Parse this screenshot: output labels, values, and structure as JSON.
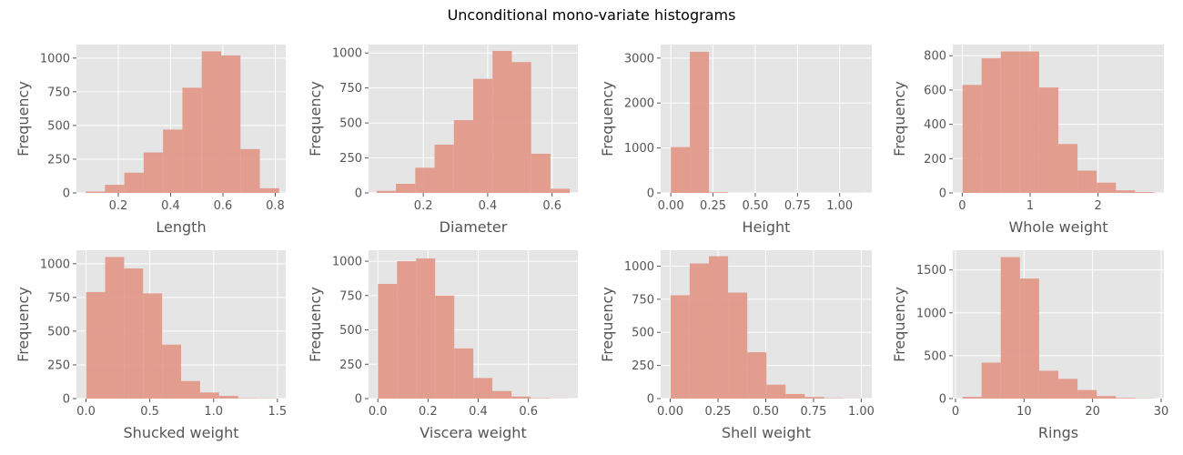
{
  "figure": {
    "suptitle": "Unconditional mono-variate histograms"
  },
  "colors": {
    "axes_bg": "#E5E5E5",
    "grid": "#FFFFFF",
    "bar": "#E2998A",
    "tick_text": "#555555",
    "figure_bg": "#FFFFFF"
  },
  "chart_data": [
    {
      "type": "bar",
      "xlabel": "Length",
      "ylabel": "Frequency",
      "grid": true,
      "xlim": [
        0.04,
        0.84
      ],
      "ylim": [
        0,
        1100
      ],
      "xticks": [
        0.2,
        0.4,
        0.6,
        0.8
      ],
      "xtick_labels": [
        "0.2",
        "0.4",
        "0.6",
        "0.8"
      ],
      "yticks": [
        0,
        250,
        500,
        750,
        1000
      ],
      "ytick_labels": [
        "0",
        "250",
        "500",
        "750",
        "1000"
      ],
      "bin_edges": [
        0.075,
        0.149,
        0.223,
        0.297,
        0.371,
        0.445,
        0.519,
        0.593,
        0.667,
        0.741,
        0.815
      ],
      "values": [
        10,
        60,
        150,
        300,
        470,
        780,
        1050,
        1020,
        325,
        35
      ]
    },
    {
      "type": "bar",
      "xlabel": "Diameter",
      "ylabel": "Frequency",
      "grid": true,
      "xlim": [
        0.03,
        0.68
      ],
      "ylim": [
        0,
        1060
      ],
      "xticks": [
        0.2,
        0.4,
        0.6
      ],
      "xtick_labels": [
        "0.2",
        "0.4",
        "0.6"
      ],
      "yticks": [
        0,
        250,
        500,
        750,
        1000
      ],
      "ytick_labels": [
        "0",
        "250",
        "500",
        "750",
        "1000"
      ],
      "bin_edges": [
        0.055,
        0.115,
        0.175,
        0.235,
        0.295,
        0.355,
        0.415,
        0.475,
        0.535,
        0.595,
        0.655
      ],
      "values": [
        15,
        65,
        180,
        345,
        520,
        815,
        1015,
        935,
        280,
        30
      ]
    },
    {
      "type": "bar",
      "xlabel": "Height",
      "ylabel": "Frequency",
      "grid": true,
      "xlim": [
        -0.06,
        1.19
      ],
      "ylim": [
        0,
        3300
      ],
      "xticks": [
        0,
        0.25,
        0.5,
        0.75,
        1.0
      ],
      "xtick_labels": [
        "0.00",
        "0.25",
        "0.50",
        "0.75",
        "1.00"
      ],
      "yticks": [
        0,
        1000,
        2000,
        3000
      ],
      "ytick_labels": [
        "0",
        "1000",
        "2000",
        "3000"
      ],
      "bin_edges": [
        0.0,
        0.113,
        0.226,
        0.339,
        0.452,
        0.565,
        0.678,
        0.791,
        0.904,
        1.017,
        1.13
      ],
      "values": [
        1020,
        3140,
        15,
        0,
        0,
        0,
        0,
        0,
        0,
        2
      ]
    },
    {
      "type": "bar",
      "xlabel": "Whole weight",
      "ylabel": "Frequency",
      "grid": true,
      "xlim": [
        -0.14,
        2.97
      ],
      "ylim": [
        0,
        865
      ],
      "xticks": [
        0,
        1,
        2
      ],
      "xtick_labels": [
        "0",
        "1",
        "2"
      ],
      "yticks": [
        0,
        200,
        400,
        600,
        800
      ],
      "ytick_labels": [
        "0",
        "200",
        "400",
        "600",
        "800"
      ],
      "bin_edges": [
        0.002,
        0.2846,
        0.5672,
        0.8498,
        1.1324,
        1.415,
        1.6976,
        1.9802,
        2.2628,
        2.5454,
        2.828
      ],
      "values": [
        630,
        785,
        825,
        825,
        615,
        285,
        130,
        60,
        15,
        5
      ]
    },
    {
      "type": "bar",
      "xlabel": "Shucked weight",
      "ylabel": "Frequency",
      "grid": true,
      "xlim": [
        -0.075,
        1.565
      ],
      "ylim": [
        0,
        1100
      ],
      "xticks": [
        0.0,
        0.5,
        1.0,
        1.5
      ],
      "xtick_labels": [
        "0.0",
        "0.5",
        "1.0",
        "1.5"
      ],
      "yticks": [
        0,
        250,
        500,
        750,
        1000
      ],
      "ytick_labels": [
        "0",
        "250",
        "500",
        "750",
        "1000"
      ],
      "bin_edges": [
        0.001,
        0.1498,
        0.2986,
        0.4474,
        0.5962,
        0.745,
        0.8938,
        1.0426,
        1.1914,
        1.3402,
        1.489
      ],
      "values": [
        790,
        1050,
        965,
        780,
        400,
        130,
        45,
        20,
        3,
        2
      ]
    },
    {
      "type": "bar",
      "xlabel": "Viscera weight",
      "ylabel": "Frequency",
      "grid": true,
      "xlim": [
        -0.037,
        0.797
      ],
      "ylim": [
        0,
        1080
      ],
      "xticks": [
        0.0,
        0.2,
        0.4,
        0.6
      ],
      "xtick_labels": [
        "0.0",
        "0.2",
        "0.4",
        "0.6"
      ],
      "yticks": [
        0,
        250,
        500,
        750,
        1000
      ],
      "ytick_labels": [
        "0",
        "250",
        "500",
        "750",
        "1000"
      ],
      "bin_edges": [
        0.0005,
        0.0765,
        0.1525,
        0.2285,
        0.3045,
        0.3805,
        0.4565,
        0.5325,
        0.6085,
        0.6845,
        0.7605
      ],
      "values": [
        835,
        1000,
        1020,
        750,
        365,
        150,
        55,
        15,
        3,
        1
      ]
    },
    {
      "type": "bar",
      "xlabel": "Shell weight",
      "ylabel": "Frequency",
      "grid": true,
      "xlim": [
        -0.05,
        1.055
      ],
      "ylim": [
        0,
        1120
      ],
      "xticks": [
        0.0,
        0.25,
        0.5,
        0.75,
        1.0
      ],
      "xtick_labels": [
        "0.00",
        "0.25",
        "0.50",
        "0.75",
        "1.00"
      ],
      "yticks": [
        0,
        250,
        500,
        750,
        1000
      ],
      "ytick_labels": [
        "0",
        "250",
        "500",
        "750",
        "1000"
      ],
      "bin_edges": [
        0.0015,
        0.1019,
        0.2023,
        0.3027,
        0.4031,
        0.5035,
        0.6039,
        0.7043,
        0.8047,
        0.9051,
        1.0055
      ],
      "values": [
        780,
        1020,
        1075,
        800,
        350,
        105,
        35,
        12,
        3,
        1
      ]
    },
    {
      "type": "bar",
      "xlabel": "Rings",
      "ylabel": "Frequency",
      "grid": true,
      "xlim": [
        -0.4,
        30.4
      ],
      "ylim": [
        0,
        1730
      ],
      "xticks": [
        0,
        10,
        20,
        30
      ],
      "xtick_labels": [
        "0",
        "10",
        "20",
        "30"
      ],
      "yticks": [
        0,
        500,
        1000,
        1500
      ],
      "ytick_labels": [
        "0",
        "500",
        "1000",
        "1500"
      ],
      "bin_edges": [
        1.0,
        3.8,
        6.6,
        9.4,
        12.2,
        15.0,
        17.8,
        20.6,
        23.4,
        26.2,
        29.0
      ],
      "values": [
        20,
        420,
        1650,
        1400,
        325,
        230,
        100,
        30,
        8,
        3
      ]
    }
  ]
}
